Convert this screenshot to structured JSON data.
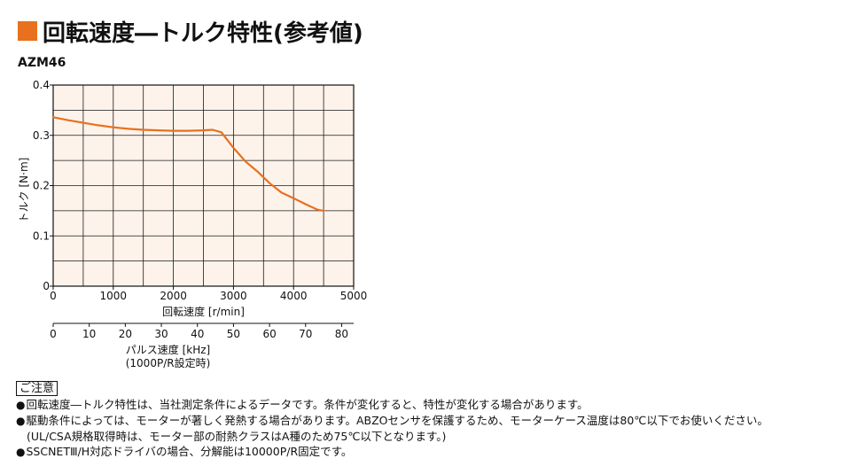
{
  "header": {
    "title": "回転速度―トルク特性(参考値)",
    "model": "AZM46"
  },
  "chart_data": {
    "type": "line",
    "ylabel": "トルク [N·m]",
    "xlabel": "回転速度 [r/min]",
    "xlim": [
      0,
      5000
    ],
    "ylim": [
      0,
      0.4
    ],
    "x_ticks": [
      0,
      1000,
      2000,
      3000,
      4000,
      5000
    ],
    "x_tick_labels": [
      "0",
      "1000",
      "2000",
      "3000",
      "4000",
      "5000"
    ],
    "y_ticks": [
      0,
      0.1,
      0.2,
      0.3,
      0.4
    ],
    "y_tick_labels": [
      "0",
      "0.1",
      "0.2",
      "0.3",
      "0.4"
    ],
    "grid": true,
    "series": [
      {
        "color": "#e8701f",
        "x": [
          0,
          250,
          500,
          750,
          1000,
          1250,
          1500,
          1750,
          2000,
          2250,
          2500,
          2650,
          2800,
          3000,
          3200,
          3400,
          3600,
          3800,
          4000,
          4200,
          4400,
          4500
        ],
        "y": [
          0.336,
          0.33,
          0.325,
          0.32,
          0.316,
          0.313,
          0.311,
          0.31,
          0.309,
          0.309,
          0.31,
          0.311,
          0.306,
          0.275,
          0.248,
          0.228,
          0.205,
          0.186,
          0.175,
          0.163,
          0.152,
          0.15
        ]
      }
    ],
    "secondary_axis": {
      "label": "パルス速度 [kHz]",
      "sublabel": "(1000P/R設定時)",
      "lim": [
        0,
        83.33
      ],
      "ticks": [
        0,
        10,
        20,
        30,
        40,
        50,
        60,
        70,
        80
      ],
      "tick_labels": [
        "0",
        "10",
        "20",
        "30",
        "40",
        "50",
        "60",
        "70",
        "80"
      ]
    },
    "colors": {
      "plot_background": "#fdf3ea",
      "grid": "#1a1a1a",
      "line": "#e8701f"
    }
  },
  "notes": {
    "heading": "ご注意",
    "lines": [
      "回転速度―トルク特性は、当社測定条件によるデータです。条件が変化すると、特性が変化する場合があります。",
      "駆動条件によっては、モーターが著しく発熱する場合があります。ABZOセンサを保護するため、モーターケース温度は80℃以下でお使いください。",
      "(UL/CSA規格取得時は、モーター部の耐熱クラスはA種のため75℃以下となります。)",
      "SSCNETⅢ/H対応ドライバの場合、分解能は10000P/R固定です。"
    ]
  }
}
